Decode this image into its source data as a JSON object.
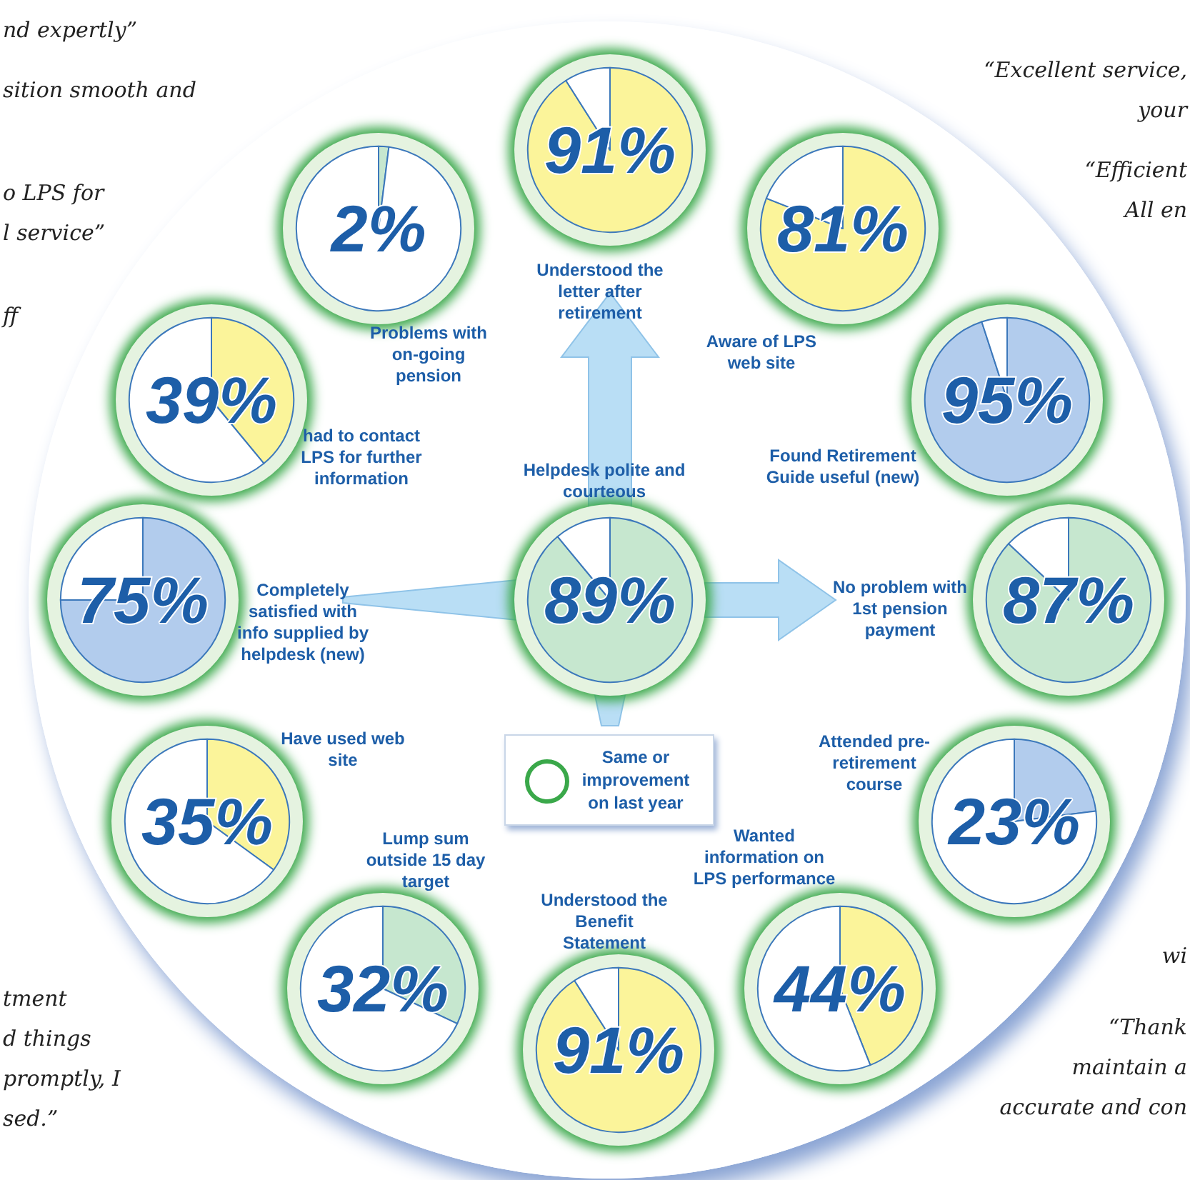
{
  "chart_data": [
    {
      "type": "pie",
      "title": "Problems with on-going pension",
      "categories": [
        null,
        null
      ],
      "values": [
        2,
        98
      ],
      "colors": [
        "#c6e7cf",
        "#ffffff"
      ],
      "annotations": [
        "2%"
      ]
    },
    {
      "type": "pie",
      "title": "Understood the letter after retirement",
      "categories": [
        null,
        null
      ],
      "values": [
        91,
        9
      ],
      "colors": [
        "#fbf49a",
        "#ffffff"
      ],
      "annotations": [
        "91%"
      ]
    },
    {
      "type": "pie",
      "title": "Aware of LPS web site",
      "categories": [
        null,
        null
      ],
      "values": [
        81,
        19
      ],
      "colors": [
        "#fbf49a",
        "#ffffff"
      ],
      "annotations": [
        "81%"
      ]
    },
    {
      "type": "pie",
      "title": "had to contact LPS for further information",
      "categories": [
        null,
        null
      ],
      "values": [
        39,
        61
      ],
      "colors": [
        "#fbf49a",
        "#ffffff"
      ],
      "annotations": [
        "39%"
      ]
    },
    {
      "type": "pie",
      "title": "Found Retirement Guide useful (new)",
      "categories": [
        null,
        null
      ],
      "values": [
        95,
        5
      ],
      "colors": [
        "#b2cced",
        "#ffffff"
      ],
      "annotations": [
        "95%"
      ]
    },
    {
      "type": "pie",
      "title": "Completely satisfied with info supplied by helpdesk (new)",
      "categories": [
        null,
        null
      ],
      "values": [
        75,
        25
      ],
      "colors": [
        "#b2cced",
        "#ffffff"
      ],
      "annotations": [
        "75%"
      ]
    },
    {
      "type": "pie",
      "title": "Helpdesk polite and courteous",
      "categories": [
        null,
        null
      ],
      "values": [
        89,
        11
      ],
      "colors": [
        "#c6e7cf",
        "#ffffff"
      ],
      "annotations": [
        "89%"
      ]
    },
    {
      "type": "pie",
      "title": "No problem with 1st pension payment",
      "categories": [
        null,
        null
      ],
      "values": [
        87,
        13
      ],
      "colors": [
        "#c6e7cf",
        "#ffffff"
      ],
      "annotations": [
        "87%"
      ]
    },
    {
      "type": "pie",
      "title": "Have used web site",
      "categories": [
        null,
        null
      ],
      "values": [
        35,
        65
      ],
      "colors": [
        "#fbf49a",
        "#ffffff"
      ],
      "annotations": [
        "35%"
      ]
    },
    {
      "type": "pie",
      "title": "Attended pre-retirement course",
      "categories": [
        null,
        null
      ],
      "values": [
        23,
        77
      ],
      "colors": [
        "#b2cced",
        "#ffffff"
      ],
      "annotations": [
        "23%"
      ]
    },
    {
      "type": "pie",
      "title": "Lump sum outside 15 day target",
      "categories": [
        null,
        null
      ],
      "values": [
        32,
        68
      ],
      "colors": [
        "#c6e7cf",
        "#ffffff"
      ],
      "annotations": [
        "32%"
      ]
    },
    {
      "type": "pie",
      "title": "Understood the Benefit Statement",
      "categories": [
        null,
        null
      ],
      "values": [
        91,
        9
      ],
      "colors": [
        "#fbf49a",
        "#ffffff"
      ],
      "annotations": [
        "91%"
      ]
    },
    {
      "type": "pie",
      "title": "Wanted information on LPS performance",
      "categories": [
        null,
        null
      ],
      "values": [
        44,
        56
      ],
      "colors": [
        "#fbf49a",
        "#ffffff"
      ],
      "annotations": [
        "44%"
      ]
    },
    {
      "type": "other",
      "annotations": [
        "nd expertly”",
        "sition smooth and",
        "o LPS for",
        "l service”",
        "ff",
        "tment",
        "d things",
        "promptly, I",
        "sed.”",
        "“Excellent service,",
        "your",
        "“Efficient",
        "All en",
        "wi",
        "“Thank",
        "maintain a",
        "accurate and con",
        "Same or improvement on last year"
      ]
    }
  ]
}
